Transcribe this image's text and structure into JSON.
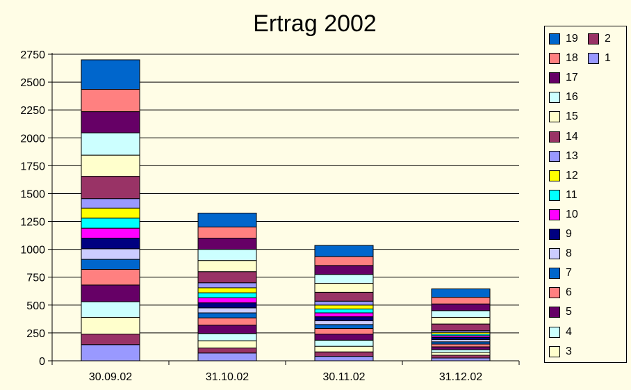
{
  "chart_data": {
    "type": "bar",
    "stacked": true,
    "title": "Ertrag 2002",
    "xlabel": "",
    "ylabel": "",
    "ylim": [
      0,
      2750
    ],
    "yticks": [
      0,
      250,
      500,
      750,
      1000,
      1250,
      1500,
      1750,
      2000,
      2250,
      2500,
      2750
    ],
    "grid": true,
    "legend_position": "right",
    "categories": [
      "30.09.02",
      "31.10.02",
      "30.11.02",
      "31.12.02"
    ],
    "series": [
      {
        "name": "1",
        "color": "#9999ff",
        "values": [
          145,
          70,
          40,
          25
        ]
      },
      {
        "name": "2",
        "color": "#993366",
        "values": [
          95,
          45,
          40,
          25
        ]
      },
      {
        "name": "3",
        "color": "#ffffcc",
        "values": [
          150,
          65,
          50,
          25
        ]
      },
      {
        "name": "4",
        "color": "#ccffff",
        "values": [
          140,
          65,
          55,
          25
        ]
      },
      {
        "name": "5",
        "color": "#660066",
        "values": [
          150,
          75,
          55,
          25
        ]
      },
      {
        "name": "6",
        "color": "#ff8080",
        "values": [
          140,
          65,
          50,
          25
        ]
      },
      {
        "name": "7",
        "color": "#0066cc",
        "values": [
          90,
          45,
          35,
          20
        ]
      },
      {
        "name": "8",
        "color": "#ccccff",
        "values": [
          95,
          45,
          35,
          20
        ]
      },
      {
        "name": "9",
        "color": "#000080",
        "values": [
          95,
          45,
          35,
          20
        ]
      },
      {
        "name": "10",
        "color": "#ff00ff",
        "values": [
          90,
          45,
          35,
          15
        ]
      },
      {
        "name": "11",
        "color": "#00ffff",
        "values": [
          90,
          45,
          35,
          15
        ]
      },
      {
        "name": "12",
        "color": "#ffff00",
        "values": [
          90,
          45,
          35,
          15
        ]
      },
      {
        "name": "13",
        "color": "#9999ff",
        "values": [
          85,
          45,
          35,
          15
        ]
      },
      {
        "name": "14",
        "color": "#993366",
        "values": [
          200,
          100,
          80,
          60
        ]
      },
      {
        "name": "15",
        "color": "#ffffcc",
        "values": [
          190,
          100,
          80,
          60
        ]
      },
      {
        "name": "16",
        "color": "#ccffff",
        "values": [
          200,
          100,
          80,
          60
        ]
      },
      {
        "name": "17",
        "color": "#660066",
        "values": [
          190,
          100,
          80,
          60
        ]
      },
      {
        "name": "18",
        "color": "#ff8080",
        "values": [
          200,
          100,
          80,
          60
        ]
      },
      {
        "name": "19",
        "color": "#0066cc",
        "values": [
          265,
          125,
          100,
          75
        ]
      }
    ],
    "legend_order": [
      "19",
      "18",
      "17",
      "16",
      "15",
      "14",
      "13",
      "12",
      "11",
      "10",
      "9",
      "8",
      "7",
      "6",
      "5",
      "4",
      "3",
      "2",
      "1"
    ]
  }
}
